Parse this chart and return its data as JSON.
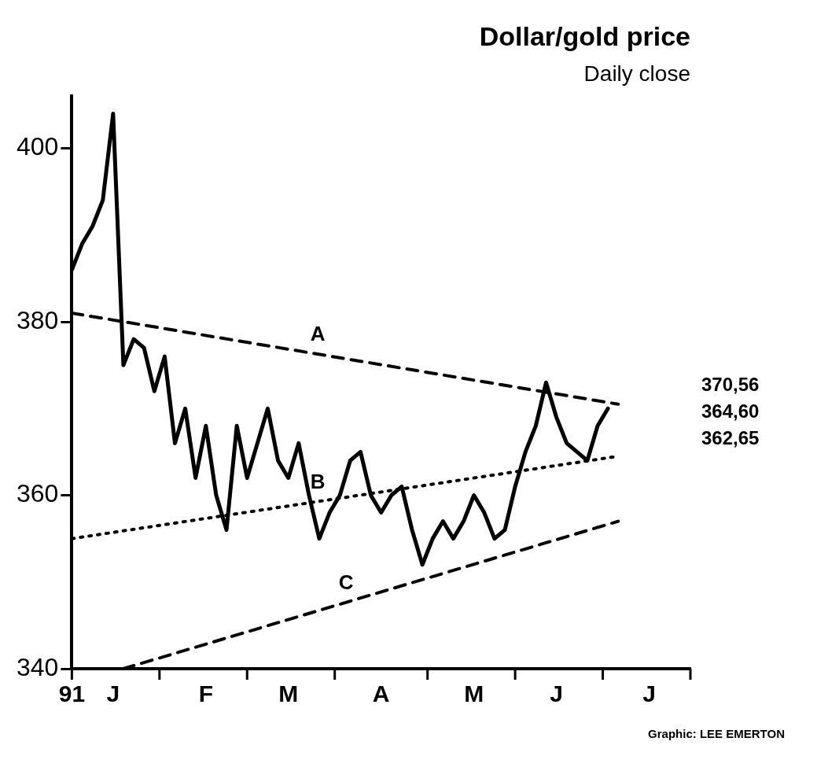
{
  "chart_data": {
    "type": "line",
    "title": "Dollar/gold price",
    "subtitle": "Daily close",
    "categories": [
      "91",
      null,
      null,
      null,
      "J",
      null,
      null,
      null,
      null,
      null,
      null,
      null,
      null,
      "F",
      null,
      null,
      null,
      null,
      null,
      null,
      null,
      "M",
      null,
      null,
      null,
      null,
      null,
      null,
      null,
      null,
      "A",
      null,
      null,
      null,
      null,
      null,
      null,
      null,
      null,
      "M",
      null,
      null,
      null,
      null,
      null,
      null,
      null,
      "J",
      null,
      null,
      null,
      null,
      null,
      null,
      null,
      null,
      "J",
      null,
      null,
      null,
      null
    ],
    "series": [
      {
        "color": "#000000",
        "line_style": "solid",
        "values": [
          386,
          389,
          391,
          394,
          404,
          375,
          378,
          377,
          372,
          376,
          366,
          370,
          362,
          368,
          360,
          356,
          368,
          362,
          366,
          370,
          364,
          362,
          366,
          360,
          355,
          358,
          360,
          364,
          365,
          360,
          358,
          360,
          361,
          356,
          352,
          355,
          357,
          355,
          357,
          360,
          358,
          355,
          356,
          361,
          365,
          368,
          373,
          369,
          366,
          365,
          364,
          368,
          370,
          null,
          null,
          null,
          null,
          null,
          null,
          null,
          null
        ]
      },
      {
        "name": "A",
        "color": "#000000",
        "line_style": "dashed",
        "values": [
          381,
          null,
          null,
          null,
          null,
          null,
          null,
          null,
          null,
          null,
          null,
          null,
          null,
          null,
          null,
          null,
          null,
          null,
          null,
          null,
          null,
          null,
          null,
          null,
          null,
          null,
          null,
          null,
          null,
          null,
          null,
          null,
          null,
          null,
          null,
          null,
          null,
          null,
          null,
          null,
          null,
          null,
          null,
          null,
          null,
          null,
          null,
          null,
          null,
          null,
          null,
          null,
          null,
          370.5,
          null,
          null,
          null,
          null,
          null,
          null,
          null
        ]
      },
      {
        "name": "B",
        "color": "#000000",
        "line_style": "dotted",
        "values": [
          355,
          null,
          null,
          null,
          null,
          null,
          null,
          null,
          null,
          null,
          null,
          null,
          null,
          null,
          null,
          null,
          null,
          null,
          null,
          null,
          null,
          null,
          null,
          null,
          null,
          null,
          null,
          null,
          null,
          null,
          null,
          null,
          null,
          null,
          null,
          null,
          null,
          null,
          null,
          null,
          null,
          null,
          null,
          null,
          null,
          null,
          null,
          null,
          null,
          null,
          null,
          null,
          null,
          364.5,
          null,
          null,
          null,
          null,
          null,
          null,
          null
        ]
      },
      {
        "name": "C",
        "color": "#000000",
        "line_style": "dashed",
        "values": [
          null,
          null,
          null,
          null,
          null,
          340,
          null,
          null,
          null,
          null,
          null,
          null,
          null,
          null,
          null,
          null,
          null,
          null,
          null,
          null,
          null,
          null,
          null,
          null,
          null,
          null,
          null,
          null,
          null,
          null,
          null,
          null,
          null,
          null,
          null,
          null,
          null,
          null,
          null,
          null,
          null,
          null,
          null,
          null,
          null,
          null,
          null,
          null,
          null,
          null,
          null,
          null,
          null,
          357,
          null,
          null,
          null,
          null,
          null,
          null,
          null
        ]
      }
    ],
    "ylim": [
      340,
      406
    ],
    "yticks": [
      340,
      360,
      380,
      400
    ],
    "grid": false,
    "legend": false,
    "marker": "none",
    "annotations": [
      "370,56",
      "364,60",
      "362,65",
      "Graphic: LEE EMERTON"
    ]
  }
}
